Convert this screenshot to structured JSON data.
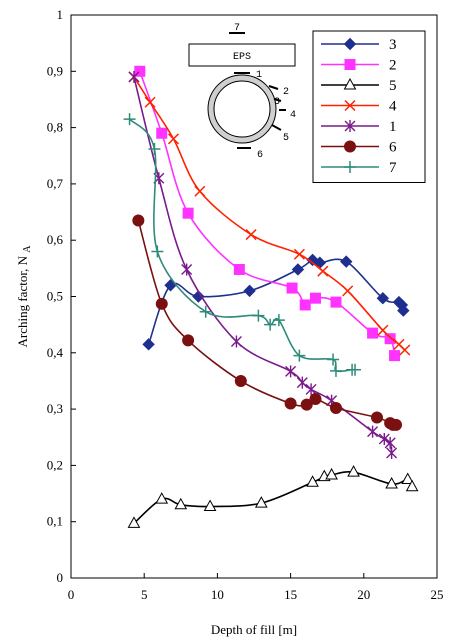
{
  "chart_data": {
    "type": "line",
    "xlabel": "Depth of fill [m]",
    "ylabel": "Arching factor, N",
    "ylabel_sub": "A",
    "xlim": [
      0,
      25
    ],
    "ylim": [
      0,
      1
    ],
    "x_ticks": [
      "0",
      "5",
      "10",
      "15",
      "20",
      "25"
    ],
    "y_ticks": [
      "0",
      "0,1",
      "0,2",
      "0,3",
      "0,4",
      "0,5",
      "0,6",
      "0,7",
      "0,8",
      "0,9",
      "1"
    ],
    "grid": false,
    "legend_position": "top-right",
    "series": [
      {
        "name": "3",
        "color": "#1f2f8f",
        "marker": "diamond",
        "points": [
          [
            5.3,
            0.415
          ],
          [
            6.8,
            0.52
          ],
          [
            8.7,
            0.5
          ],
          [
            12.2,
            0.51
          ],
          [
            15.5,
            0.548
          ],
          [
            16.5,
            0.565
          ],
          [
            17.0,
            0.56
          ],
          [
            18.8,
            0.562
          ],
          [
            21.3,
            0.497
          ],
          [
            22.4,
            0.49
          ],
          [
            22.6,
            0.485
          ],
          [
            22.7,
            0.475
          ]
        ]
      },
      {
        "name": "2",
        "color": "#ff33ff",
        "marker": "square",
        "points": [
          [
            4.7,
            0.9
          ],
          [
            6.2,
            0.79
          ],
          [
            8.0,
            0.648
          ],
          [
            11.5,
            0.548
          ],
          [
            15.1,
            0.515
          ],
          [
            16.0,
            0.485
          ],
          [
            16.7,
            0.497
          ],
          [
            18.1,
            0.49
          ],
          [
            20.6,
            0.435
          ],
          [
            21.8,
            0.425
          ],
          [
            22.1,
            0.395
          ]
        ]
      },
      {
        "name": "5",
        "color": "#000000",
        "marker": "triangle-open",
        "points": [
          [
            4.3,
            0.097
          ],
          [
            6.2,
            0.14
          ],
          [
            7.5,
            0.13
          ],
          [
            9.5,
            0.127
          ],
          [
            13.0,
            0.133
          ],
          [
            16.5,
            0.17
          ],
          [
            17.3,
            0.18
          ],
          [
            17.8,
            0.183
          ],
          [
            19.3,
            0.188
          ],
          [
            21.9,
            0.167
          ],
          [
            23.0,
            0.175
          ],
          [
            23.3,
            0.162
          ]
        ]
      },
      {
        "name": "4",
        "color": "#ff2200",
        "marker": "x",
        "points": [
          [
            4.3,
            0.89
          ],
          [
            5.4,
            0.845
          ],
          [
            7.0,
            0.78
          ],
          [
            8.8,
            0.687
          ],
          [
            12.3,
            0.61
          ],
          [
            15.6,
            0.575
          ],
          [
            17.2,
            0.545
          ],
          [
            18.9,
            0.51
          ],
          [
            21.3,
            0.44
          ],
          [
            22.4,
            0.415
          ],
          [
            22.8,
            0.405
          ]
        ]
      },
      {
        "name": "1",
        "color": "#7a1a8c",
        "marker": "asterisk",
        "points": [
          [
            4.3,
            0.89
          ],
          [
            6.0,
            0.71
          ],
          [
            7.9,
            0.548
          ],
          [
            11.3,
            0.42
          ],
          [
            15.0,
            0.367
          ],
          [
            15.8,
            0.347
          ],
          [
            16.4,
            0.335
          ],
          [
            17.8,
            0.315
          ],
          [
            20.6,
            0.26
          ],
          [
            21.4,
            0.247
          ],
          [
            21.8,
            0.24
          ],
          [
            21.9,
            0.222
          ]
        ]
      },
      {
        "name": "6",
        "color": "#7a1010",
        "marker": "circle",
        "points": [
          [
            4.6,
            0.635
          ],
          [
            6.2,
            0.487
          ],
          [
            8.0,
            0.422
          ],
          [
            11.6,
            0.35
          ],
          [
            15.0,
            0.31
          ],
          [
            16.1,
            0.308
          ],
          [
            16.7,
            0.318
          ],
          [
            18.1,
            0.302
          ],
          [
            20.9,
            0.285
          ],
          [
            21.8,
            0.275
          ],
          [
            22.0,
            0.272
          ],
          [
            22.2,
            0.272
          ]
        ]
      },
      {
        "name": "7",
        "color": "#2e8b7a",
        "marker": "plus",
        "points": [
          [
            4.0,
            0.815
          ],
          [
            5.7,
            0.762
          ],
          [
            5.9,
            0.58
          ],
          [
            9.2,
            0.473
          ],
          [
            12.8,
            0.466
          ],
          [
            13.6,
            0.45
          ],
          [
            14.2,
            0.458
          ],
          [
            15.6,
            0.395
          ],
          [
            17.9,
            0.388
          ],
          [
            18.1,
            0.368
          ],
          [
            19.2,
            0.37
          ],
          [
            19.4,
            0.37
          ]
        ]
      }
    ],
    "inset": {
      "box_label": "EPS",
      "labels": [
        "7",
        "1",
        "2",
        "3",
        "4",
        "5",
        "6"
      ]
    }
  }
}
